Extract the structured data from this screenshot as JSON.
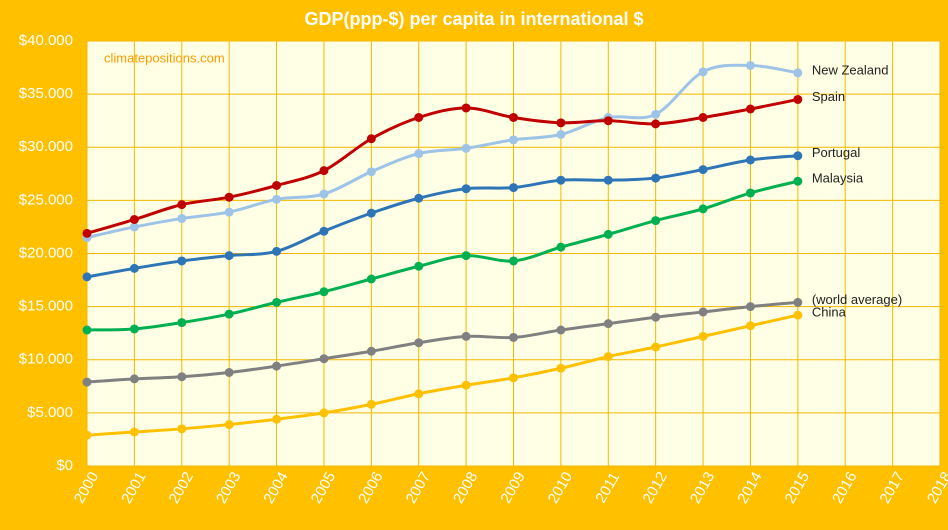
{
  "chart_data": {
    "type": "line",
    "title": "GDP(ppp-$) per capita in international $",
    "annotations": [
      "climatepositions.com"
    ],
    "xlim": [
      2000,
      2018
    ],
    "xticks": [
      2000,
      2001,
      2002,
      2003,
      2004,
      2005,
      2006,
      2007,
      2008,
      2009,
      2010,
      2011,
      2012,
      2013,
      2014,
      2015,
      2016,
      2017,
      2018
    ],
    "ylim": [
      0,
      40000
    ],
    "yticks": [
      {
        "value": 0,
        "label": "$0"
      },
      {
        "value": 5000,
        "label": "$5.000"
      },
      {
        "value": 10000,
        "label": "$10.000"
      },
      {
        "value": 15000,
        "label": "$15.000"
      },
      {
        "value": 20000,
        "label": "$20.000"
      },
      {
        "value": 25000,
        "label": "$25.000"
      },
      {
        "value": 30000,
        "label": "$30.000"
      },
      {
        "value": 35000,
        "label": "$35.000"
      },
      {
        "value": 40000,
        "label": "$40.000"
      }
    ],
    "grid": true,
    "x": [
      2000,
      2001,
      2002,
      2003,
      2004,
      2005,
      2006,
      2007,
      2008,
      2009,
      2010,
      2011,
      2012,
      2013,
      2014,
      2015
    ],
    "series": [
      {
        "name": "New Zealand",
        "color": "#9DC3E6",
        "values": [
          21500,
          22500,
          23300,
          23900,
          25100,
          25600,
          27700,
          29400,
          29900,
          30700,
          31200,
          32800,
          33100,
          37100,
          37700,
          37000
        ]
      },
      {
        "name": "Spain",
        "color": "#C00000",
        "values": [
          21900,
          23200,
          24600,
          25300,
          26400,
          27800,
          30800,
          32800,
          33700,
          32800,
          32300,
          32500,
          32200,
          32800,
          33600,
          34500
        ]
      },
      {
        "name": "Portugal",
        "color": "#2E75B6",
        "values": [
          17800,
          18600,
          19300,
          19800,
          20200,
          22100,
          23800,
          25200,
          26100,
          26200,
          26900,
          26900,
          27100,
          27900,
          28800,
          29200
        ]
      },
      {
        "name": "Malaysia",
        "color": "#00B050",
        "values": [
          12800,
          12900,
          13500,
          14300,
          15400,
          16400,
          17600,
          18800,
          19800,
          19300,
          20600,
          21800,
          23100,
          24200,
          25700,
          26800
        ]
      },
      {
        "name": "(world average)",
        "color": "#808080",
        "values": [
          7900,
          8200,
          8400,
          8800,
          9400,
          10100,
          10800,
          11600,
          12200,
          12100,
          12800,
          13400,
          14000,
          14500,
          15000,
          15400
        ]
      },
      {
        "name": "China",
        "color": "#FFC000",
        "values": [
          2900,
          3200,
          3500,
          3900,
          4400,
          5000,
          5800,
          6800,
          7600,
          8300,
          9200,
          10300,
          11200,
          12200,
          13200,
          14200
        ]
      }
    ]
  }
}
